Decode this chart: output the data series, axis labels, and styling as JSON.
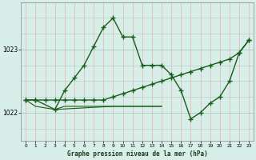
{
  "title": "Graphe pression niveau de la mer (hPa)",
  "bg_color": "#d8eee8",
  "grid_color_v": "#e8b0b0",
  "grid_color_h": "#a8ccc0",
  "line_color": "#1a5c1a",
  "yticks": [
    1022,
    1023
  ],
  "ylim": [
    1021.55,
    1023.75
  ],
  "xlim": [
    -0.5,
    23.5
  ],
  "xticks": [
    0,
    1,
    2,
    3,
    4,
    5,
    6,
    7,
    8,
    9,
    10,
    11,
    12,
    13,
    14,
    15,
    16,
    17,
    18,
    19,
    20,
    21,
    22,
    23
  ],
  "series1_x": [
    0,
    1,
    3,
    4,
    5,
    6,
    7,
    8,
    9,
    10,
    11,
    12,
    13,
    14,
    15,
    16,
    17,
    18,
    19,
    20,
    21,
    22,
    23
  ],
  "series1_y": [
    1022.2,
    1022.2,
    1022.05,
    1022.35,
    1022.55,
    1022.75,
    1023.05,
    1023.35,
    1023.5,
    1023.2,
    1023.2,
    1022.75,
    1022.75,
    1022.75,
    1022.6,
    1022.35,
    1021.9,
    1022.0,
    1022.15,
    1022.25,
    1022.5,
    1022.95,
    1023.15
  ],
  "series2_x": [
    0,
    1,
    2,
    3,
    4,
    5,
    6,
    7,
    8,
    9,
    10,
    11,
    12,
    13,
    14,
    15,
    16,
    17,
    18,
    19,
    20,
    21,
    22,
    23
  ],
  "series2_y": [
    1022.2,
    1022.2,
    1022.2,
    1022.2,
    1022.2,
    1022.2,
    1022.2,
    1022.2,
    1022.2,
    1022.25,
    1022.3,
    1022.35,
    1022.4,
    1022.45,
    1022.5,
    1022.55,
    1022.6,
    1022.65,
    1022.7,
    1022.75,
    1022.8,
    1022.85,
    1022.95,
    1023.15
  ],
  "series3_x": [
    0,
    1,
    3,
    4,
    5,
    6,
    7,
    8,
    9,
    10,
    11,
    12,
    13,
    14
  ],
  "series3_y": [
    1022.2,
    1022.1,
    1022.05,
    1022.1,
    1022.1,
    1022.1,
    1022.1,
    1022.1,
    1022.1,
    1022.1,
    1022.1,
    1022.1,
    1022.1,
    1022.1
  ],
  "series4_x": [
    3,
    9,
    14
  ],
  "series4_y": [
    1022.05,
    1022.1,
    1022.1
  ]
}
